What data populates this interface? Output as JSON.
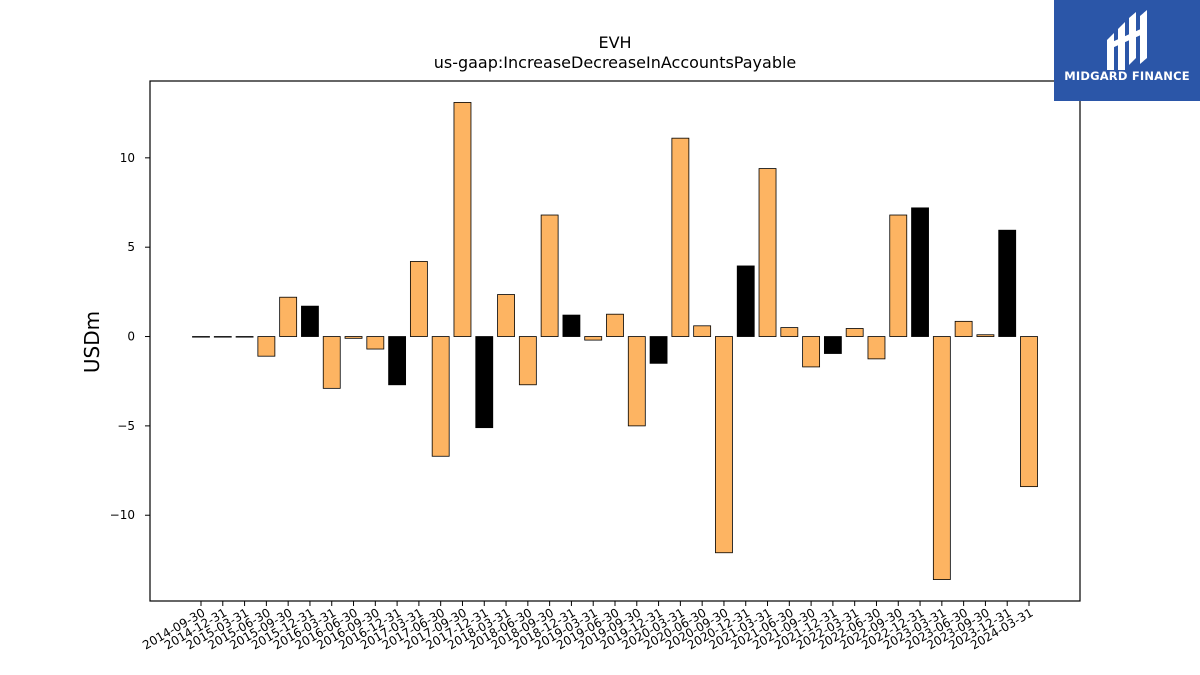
{
  "chart_data": {
    "type": "bar",
    "title": "EVH",
    "subtitle": "us-gaap:IncreaseDecreaseInAccountsPayable",
    "xlabel": "",
    "ylabel": "USDm",
    "ylim": [
      -14.8,
      14.3
    ],
    "yticks": [
      -10,
      -5,
      0,
      5,
      10
    ],
    "ytick_labels": [
      "−10",
      "−5",
      "0",
      "5",
      "10"
    ],
    "grid": false,
    "colors": {
      "q1_q3": "#fdb462",
      "q4": "#000000",
      "edge": "#000000"
    },
    "categories": [
      "2014-09-30",
      "2014-12-31",
      "2015-03-31",
      "2015-06-30",
      "2015-09-30",
      "2015-12-31",
      "2016-03-31",
      "2016-06-30",
      "2016-09-30",
      "2016-12-31",
      "2017-03-31",
      "2017-06-30",
      "2017-09-30",
      "2017-12-31",
      "2018-03-31",
      "2018-06-30",
      "2018-09-30",
      "2018-12-31",
      "2019-03-31",
      "2019-06-30",
      "2019-09-30",
      "2019-12-31",
      "2020-03-31",
      "2020-06-30",
      "2020-09-30",
      "2020-12-31",
      "2021-03-31",
      "2021-06-30",
      "2021-09-30",
      "2021-12-31",
      "2022-03-31",
      "2022-06-30",
      "2022-09-30",
      "2022-12-31",
      "2023-03-31",
      "2023-06-30",
      "2023-09-30",
      "2023-12-31",
      "2024-03-31"
    ],
    "values": [
      0.0,
      0.0,
      0.0,
      -1.1,
      2.2,
      1.7,
      -2.9,
      -0.1,
      -0.7,
      -2.7,
      4.2,
      -6.7,
      13.1,
      -5.1,
      2.35,
      -2.7,
      6.8,
      1.2,
      -0.2,
      1.25,
      -5.0,
      -1.5,
      11.1,
      0.6,
      -12.1,
      3.95,
      9.4,
      0.5,
      -1.7,
      -0.95,
      0.45,
      -1.25,
      6.8,
      7.2,
      -13.6,
      0.85,
      0.1,
      5.95,
      -8.4
    ]
  },
  "logo": {
    "text": "MIDGARD FINANCE",
    "icon": "midgard-finance-logo-icon"
  }
}
